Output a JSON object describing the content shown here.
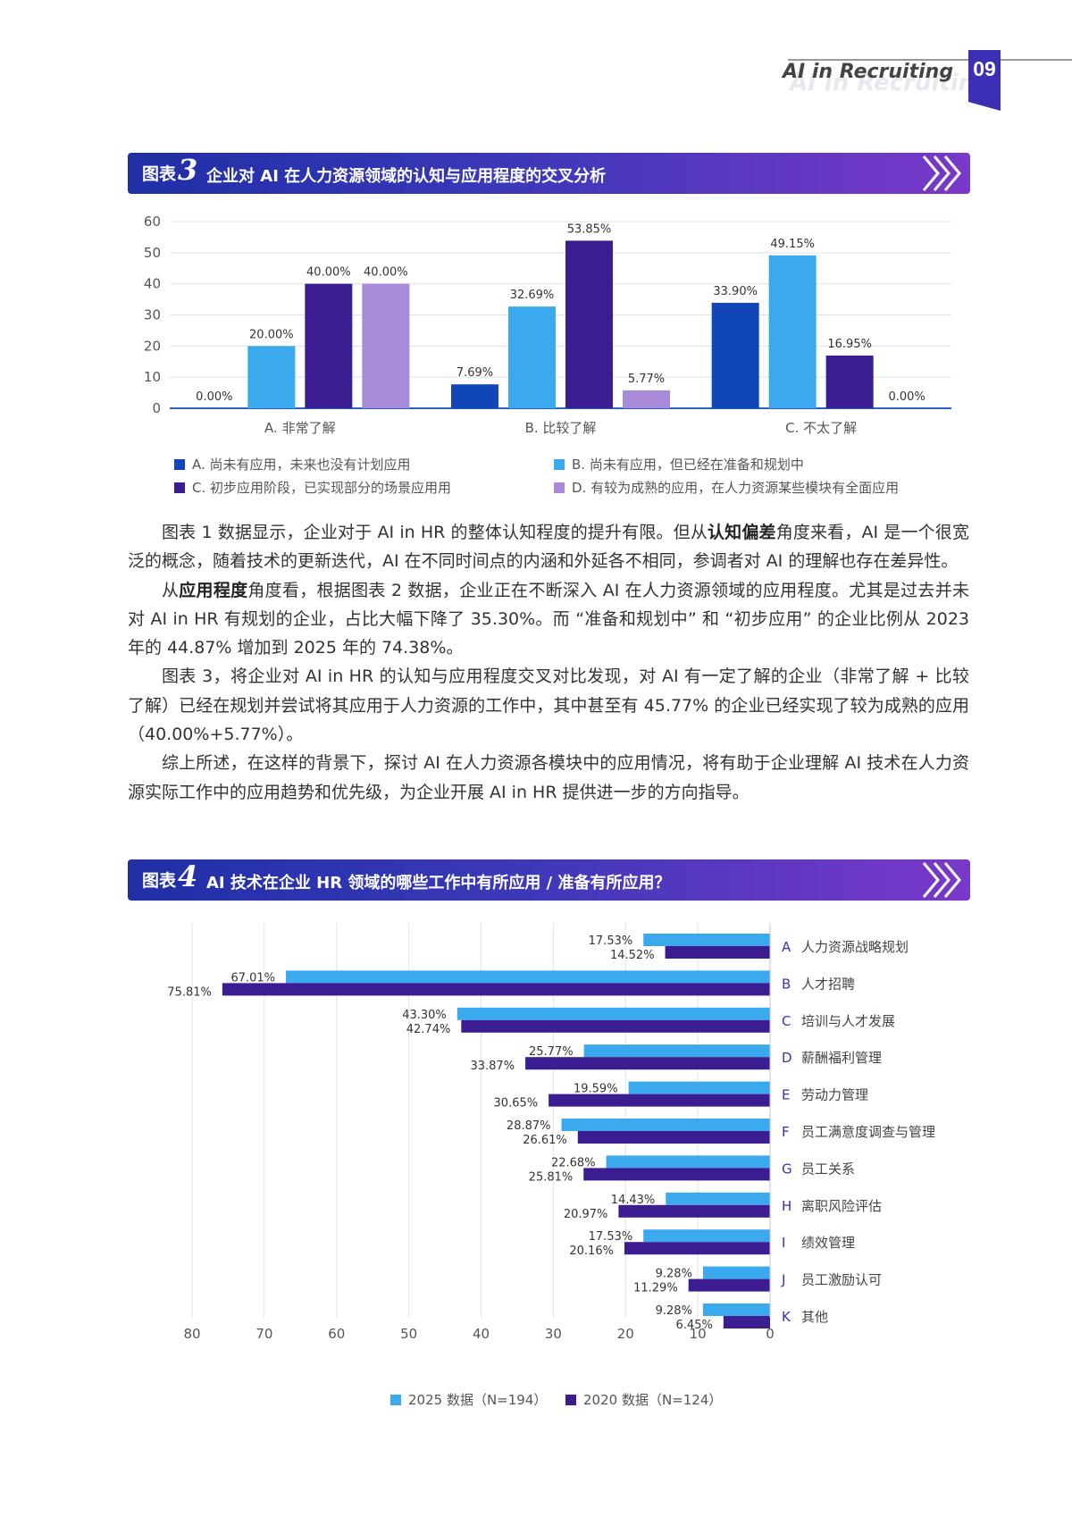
{
  "header": {
    "title": "AI in Recruiting",
    "page_number": "09",
    "accent_color": "#3d2fb5"
  },
  "figure3": {
    "label": "图表",
    "number": "3",
    "title": "企业对 AI 在人力资源领域的认知与应用程度的交叉分析"
  },
  "figure4": {
    "label": "图表",
    "number": "4",
    "title": "AI 技术在企业 HR 领域的哪些工作中有所应用 / 准备有所应用？"
  },
  "chart_data": [
    {
      "type": "bar",
      "ylim": [
        0,
        60
      ],
      "yticks": [
        "0",
        "10",
        "20",
        "30",
        "40",
        "50",
        "60"
      ],
      "grid": true,
      "categories": [
        "A. 非常了解",
        "B. 比较了解",
        "C. 不太了解"
      ],
      "series": [
        {
          "name": "A. 尚未有应用，未来也没有计划应用",
          "color": "#1146b8",
          "values": [
            0,
            7.69,
            33.9
          ],
          "labels": [
            "0.00%",
            "7.69%",
            "33.90%"
          ]
        },
        {
          "name": "B. 尚未有应用，但已经在准备和规划中",
          "color": "#3aa9ee",
          "values": [
            20.0,
            32.69,
            49.15
          ],
          "labels": [
            "20.00%",
            "32.69%",
            "49.15%"
          ]
        },
        {
          "name": "C. 初步应用阶段，已实现部分的场景应用用",
          "color": "#3b1d91",
          "values": [
            40.0,
            53.85,
            16.95
          ],
          "labels": [
            "40.00%",
            "53.85%",
            "16.95%"
          ]
        },
        {
          "name": "D. 有较为成熟的应用，在人力资源某些模块有全面应用",
          "color": "#a98ad9",
          "values": [
            40.0,
            5.77,
            0
          ],
          "labels": [
            "40.00%",
            "5.77%",
            "0.00%"
          ]
        }
      ],
      "legend": "bottom"
    },
    {
      "type": "bar",
      "orientation": "horizontal",
      "xlim": [
        0,
        80
      ],
      "xticks": [
        "80",
        "70",
        "60",
        "50",
        "40",
        "30",
        "20",
        "10",
        "0"
      ],
      "grid": true,
      "categories": [
        {
          "letter": "A",
          "name": "人力资源战略规划"
        },
        {
          "letter": "B",
          "name": "人才招聘"
        },
        {
          "letter": "C",
          "name": "培训与人才发展"
        },
        {
          "letter": "D",
          "name": "薪酬福利管理"
        },
        {
          "letter": "E",
          "name": "劳动力管理"
        },
        {
          "letter": "F",
          "name": "员工满意度调查与管理"
        },
        {
          "letter": "G",
          "name": "员工关系"
        },
        {
          "letter": "H",
          "name": "离职风险评估"
        },
        {
          "letter": "I",
          "name": "绩效管理"
        },
        {
          "letter": "J",
          "name": "员工激励认可"
        },
        {
          "letter": "K",
          "name": "其他"
        }
      ],
      "series": [
        {
          "name": "2025 数据（N=194）",
          "color": "#3aa9ee",
          "values": [
            17.53,
            67.01,
            43.3,
            25.77,
            19.59,
            28.87,
            22.68,
            14.43,
            17.53,
            9.28,
            9.28
          ],
          "labels": [
            "17.53%",
            "67.01%",
            "43.30%",
            "25.77%",
            "19.59%",
            "28.87%",
            "22.68%",
            "14.43%",
            "17.53%",
            "9.28%",
            "9.28%"
          ]
        },
        {
          "name": "2020 数据（N=124）",
          "color": "#3b1d91",
          "values": [
            14.52,
            75.81,
            42.74,
            33.87,
            30.65,
            26.61,
            25.81,
            20.97,
            20.16,
            11.29,
            6.45
          ],
          "labels": [
            "14.52%",
            "75.81%",
            "42.74%",
            "33.87%",
            "30.65%",
            "26.61%",
            "25.81%",
            "20.97%",
            "20.16%",
            "11.29%",
            "6.45%"
          ]
        }
      ],
      "legend": "bottom"
    }
  ],
  "paragraphs": [
    {
      "parts": [
        {
          "text": "图表 1 数据显示，企业对于 AI in HR 的整体认知程度的提升有限。但从"
        },
        {
          "text": "认知偏差",
          "bold": true
        },
        {
          "text": "角度来看，AI 是一个很宽泛的概念，随着技术的更新迭代，AI 在不同时间点的内涵和外延各不相同，参调者对 AI 的理解也存在差异性。"
        }
      ]
    },
    {
      "parts": [
        {
          "text": "从"
        },
        {
          "text": "应用程度",
          "bold": true
        },
        {
          "text": "角度看，根据图表 2 数据，企业正在不断深入 AI 在人力资源领域的应用程度。尤其是过去并未对 AI in HR 有规划的企业，占比大幅下降了 35.30%。而 “准备和规划中” 和 “初步应用” 的企业比例从 2023 年的 44.87% 增加到 2025 年的 74.38%。"
        }
      ]
    },
    {
      "parts": [
        {
          "text": "图表 3，将企业对 AI in HR 的认知与应用程度交叉对比发现，对 AI 有一定了解的企业（非常了解 + 比较了解）已经在规划并尝试将其应用于人力资源的工作中，其中甚至有 45.77% 的企业已经实现了较为成熟的应用（40.00%+5.77%）。"
        }
      ]
    },
    {
      "parts": [
        {
          "text": "综上所述，在这样的背景下，探讨 AI 在人力资源各模块中的应用情况，将有助于企业理解 AI 技术在人力资源实际工作中的应用趋势和优先级，为企业开展 AI in HR 提供进一步的方向指导。"
        }
      ]
    }
  ]
}
